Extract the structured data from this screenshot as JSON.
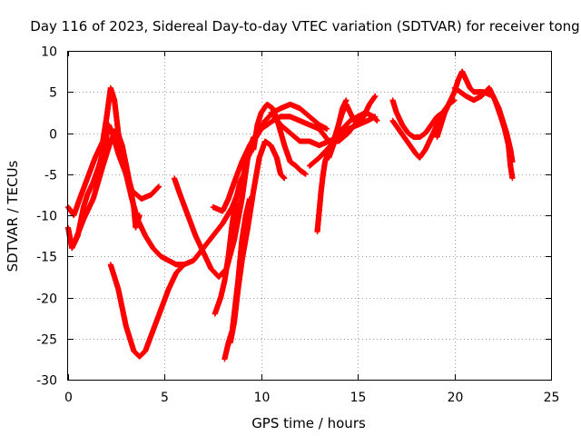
{
  "chart_data": {
    "type": "scatter",
    "title": "Day 116 of 2023, Sidereal Day-to-day VTEC variation (SDTVAR) for receiver tong",
    "xlabel": "GPS time / hours",
    "ylabel": "SDTVAR / TECUs",
    "xlim": [
      0,
      25
    ],
    "ylim": [
      -30,
      10
    ],
    "x_ticks": [
      0,
      5,
      10,
      15,
      20,
      25
    ],
    "y_ticks": [
      -30,
      -25,
      -20,
      -15,
      -10,
      -5,
      0,
      5,
      10
    ],
    "grid": true,
    "legend": "none",
    "marker": "+",
    "color": "#ff0000",
    "series": [
      {
        "points": [
          [
            0.0,
            -11.5
          ],
          [
            0.2,
            -14.0
          ],
          [
            0.5,
            -12.5
          ],
          [
            0.8,
            -9.0
          ],
          [
            1.0,
            -7.5
          ],
          [
            1.3,
            -6.0
          ],
          [
            1.6,
            -4.0
          ],
          [
            1.9,
            -1.5
          ],
          [
            2.1,
            1.0
          ],
          [
            2.3,
            0.0
          ],
          [
            2.6,
            -2.5
          ],
          [
            3.0,
            -5.0
          ],
          [
            3.3,
            -8.0
          ],
          [
            3.6,
            -10.5
          ],
          [
            4.0,
            -12.5
          ],
          [
            4.4,
            -14.0
          ],
          [
            4.8,
            -15.0
          ],
          [
            5.2,
            -15.5
          ],
          [
            5.6,
            -16.0
          ],
          [
            6.0,
            -16.0
          ],
          [
            6.5,
            -15.5
          ],
          [
            7.0,
            -14.0
          ],
          [
            7.5,
            -12.5
          ],
          [
            8.0,
            -11.0
          ],
          [
            8.5,
            -9.0
          ],
          [
            9.0,
            -6.0
          ],
          [
            9.3,
            -3.0
          ],
          [
            9.6,
            -1.0
          ],
          [
            10.0,
            0.5
          ],
          [
            10.3,
            1.0
          ],
          [
            10.6,
            1.5
          ],
          [
            11.0,
            2.0
          ],
          [
            11.5,
            2.0
          ],
          [
            12.0,
            1.5
          ],
          [
            12.5,
            1.0
          ],
          [
            13.0,
            0.5
          ],
          [
            13.5,
            -1.0
          ],
          [
            14.0,
            -0.5
          ],
          [
            14.5,
            0.5
          ],
          [
            15.0,
            1.0
          ],
          [
            15.5,
            1.5
          ],
          [
            15.9,
            2.0
          ]
        ]
      },
      {
        "points": [
          [
            0.0,
            -9.0
          ],
          [
            0.3,
            -10.0
          ],
          [
            0.6,
            -8.0
          ],
          [
            1.0,
            -5.5
          ],
          [
            1.4,
            -3.0
          ],
          [
            1.8,
            -1.0
          ],
          [
            2.0,
            2.0
          ],
          [
            2.2,
            5.5
          ],
          [
            2.4,
            4.0
          ],
          [
            2.6,
            0.0
          ],
          [
            2.9,
            -3.5
          ],
          [
            3.3,
            -7.0
          ],
          [
            3.8,
            -8.0
          ],
          [
            4.3,
            -7.5
          ],
          [
            4.7,
            -6.5
          ]
        ]
      },
      {
        "points": [
          [
            0.3,
            -13.5
          ],
          [
            0.8,
            -10.5
          ],
          [
            1.3,
            -8.0
          ],
          [
            1.8,
            -4.0
          ],
          [
            2.2,
            -1.0
          ],
          [
            2.5,
            0.5
          ],
          [
            2.8,
            -1.5
          ],
          [
            3.1,
            -5.0
          ],
          [
            3.4,
            -9.0
          ],
          [
            3.5,
            -11.5
          ],
          [
            3.7,
            -10.0
          ]
        ]
      },
      {
        "points": [
          [
            2.2,
            -16.0
          ],
          [
            2.6,
            -19.0
          ],
          [
            3.0,
            -23.5
          ],
          [
            3.4,
            -26.5
          ],
          [
            3.7,
            -27.2
          ],
          [
            4.0,
            -26.5
          ],
          [
            4.4,
            -24.0
          ],
          [
            4.8,
            -21.5
          ],
          [
            5.2,
            -19.0
          ],
          [
            5.6,
            -17.0
          ],
          [
            6.0,
            -16.0
          ]
        ]
      },
      {
        "points": [
          [
            5.5,
            -5.5
          ],
          [
            5.8,
            -7.5
          ],
          [
            6.2,
            -10.0
          ],
          [
            6.6,
            -12.5
          ],
          [
            7.0,
            -14.5
          ],
          [
            7.4,
            -16.5
          ],
          [
            7.8,
            -17.5
          ],
          [
            8.2,
            -16.5
          ],
          [
            8.6,
            -13.0
          ],
          [
            9.0,
            -8.0
          ],
          [
            9.3,
            -3.0
          ],
          [
            9.5,
            -2.0
          ]
        ]
      },
      {
        "points": [
          [
            7.5,
            -9.0
          ],
          [
            8.0,
            -9.5
          ],
          [
            8.3,
            -8.0
          ],
          [
            8.6,
            -6.0
          ],
          [
            9.0,
            -3.5
          ],
          [
            9.4,
            -1.5
          ],
          [
            9.8,
            0.0
          ],
          [
            10.2,
            1.5
          ],
          [
            10.6,
            2.5
          ],
          [
            11.0,
            3.0
          ],
          [
            11.5,
            3.5
          ],
          [
            12.0,
            3.0
          ],
          [
            12.5,
            2.0
          ],
          [
            13.0,
            1.0
          ],
          [
            13.4,
            0.5
          ]
        ]
      },
      {
        "points": [
          [
            7.6,
            -22.0
          ],
          [
            7.9,
            -20.0
          ],
          [
            8.1,
            -18.0
          ],
          [
            8.3,
            -15.0
          ],
          [
            8.5,
            -11.0
          ],
          [
            8.7,
            -8.0
          ],
          [
            8.9,
            -6.0
          ],
          [
            9.1,
            -5.0
          ],
          [
            9.4,
            -2.0
          ],
          [
            9.6,
            -0.5
          ]
        ]
      },
      {
        "points": [
          [
            8.1,
            -27.5
          ],
          [
            8.3,
            -25.5
          ],
          [
            8.5,
            -24.0
          ],
          [
            8.6,
            -22.0
          ],
          [
            8.8,
            -18.0
          ],
          [
            9.0,
            -13.0
          ],
          [
            9.2,
            -10.0
          ],
          [
            9.4,
            -8.0
          ]
        ]
      },
      {
        "points": [
          [
            8.4,
            -25.5
          ],
          [
            8.6,
            -23.0
          ],
          [
            8.8,
            -19.0
          ],
          [
            9.0,
            -15.5
          ],
          [
            9.3,
            -11.5
          ],
          [
            9.6,
            -7.0
          ],
          [
            9.9,
            -3.0
          ],
          [
            10.2,
            -1.0
          ],
          [
            10.5,
            -1.5
          ],
          [
            10.8,
            -3.0
          ],
          [
            11.0,
            -5.0
          ],
          [
            11.2,
            -5.5
          ]
        ]
      },
      {
        "points": [
          [
            9.6,
            -2.0
          ],
          [
            9.8,
            1.0
          ],
          [
            10.0,
            2.5
          ],
          [
            10.3,
            3.5
          ],
          [
            10.6,
            3.0
          ],
          [
            10.9,
            1.0
          ],
          [
            11.2,
            -1.5
          ],
          [
            11.5,
            -3.5
          ],
          [
            11.8,
            -4.0
          ],
          [
            12.0,
            -4.5
          ],
          [
            12.3,
            -5.0
          ]
        ]
      },
      {
        "points": [
          [
            10.5,
            2.5
          ],
          [
            11.0,
            1.0
          ],
          [
            11.5,
            0.0
          ],
          [
            12.0,
            -1.0
          ],
          [
            12.5,
            -1.0
          ],
          [
            13.0,
            -1.5
          ],
          [
            13.5,
            -1.0
          ],
          [
            14.0,
            -1.0
          ],
          [
            14.5,
            0.0
          ],
          [
            15.0,
            1.5
          ],
          [
            15.3,
            2.0
          ]
        ]
      },
      {
        "points": [
          [
            12.5,
            -4.0
          ],
          [
            13.0,
            -3.0
          ],
          [
            13.4,
            -2.0
          ],
          [
            13.8,
            -1.0
          ],
          [
            14.2,
            0.5
          ],
          [
            14.6,
            1.5
          ],
          [
            15.0,
            2.0
          ],
          [
            15.4,
            2.5
          ],
          [
            15.8,
            2.0
          ],
          [
            16.0,
            1.5
          ]
        ]
      },
      {
        "points": [
          [
            12.9,
            -12.0
          ],
          [
            13.0,
            -9.5
          ],
          [
            13.1,
            -7.0
          ],
          [
            13.2,
            -5.0
          ],
          [
            13.3,
            -3.5
          ],
          [
            13.5,
            -2.0
          ],
          [
            13.8,
            -0.5
          ],
          [
            14.0,
            1.0
          ],
          [
            14.2,
            3.0
          ],
          [
            14.4,
            4.0
          ]
        ]
      },
      {
        "points": [
          [
            13.5,
            -3.0
          ],
          [
            13.8,
            -1.0
          ],
          [
            14.0,
            1.0
          ],
          [
            14.2,
            2.5
          ],
          [
            14.4,
            3.5
          ],
          [
            14.7,
            2.0
          ],
          [
            15.0,
            1.0
          ],
          [
            15.3,
            2.0
          ],
          [
            15.6,
            3.5
          ],
          [
            15.9,
            4.5
          ]
        ]
      },
      {
        "points": [
          [
            16.8,
            4.0
          ],
          [
            17.0,
            2.5
          ],
          [
            17.3,
            1.0
          ],
          [
            17.6,
            0.0
          ],
          [
            17.9,
            -0.5
          ],
          [
            18.2,
            -0.5
          ],
          [
            18.5,
            0.0
          ],
          [
            18.8,
            1.0
          ],
          [
            19.1,
            2.0
          ],
          [
            19.4,
            2.5
          ],
          [
            19.7,
            3.5
          ],
          [
            20.0,
            4.0
          ]
        ]
      },
      {
        "points": [
          [
            16.8,
            1.5
          ],
          [
            17.1,
            0.5
          ],
          [
            17.4,
            -0.5
          ],
          [
            17.7,
            -1.5
          ],
          [
            18.0,
            -2.5
          ],
          [
            18.2,
            -3.0
          ],
          [
            18.5,
            -2.0
          ],
          [
            18.8,
            -0.5
          ],
          [
            19.1,
            1.0
          ],
          [
            19.4,
            2.0
          ],
          [
            19.6,
            3.0
          ],
          [
            19.8,
            4.0
          ]
        ]
      },
      {
        "points": [
          [
            19.1,
            -0.5
          ],
          [
            19.3,
            1.0
          ],
          [
            19.5,
            2.5
          ],
          [
            19.7,
            3.5
          ],
          [
            19.9,
            4.5
          ],
          [
            20.0,
            5.0
          ],
          [
            20.2,
            6.5
          ],
          [
            20.4,
            7.5
          ],
          [
            20.6,
            6.5
          ],
          [
            20.8,
            5.5
          ],
          [
            21.0,
            5.0
          ],
          [
            21.5,
            5.0
          ],
          [
            22.0,
            4.5
          ],
          [
            22.3,
            3.0
          ],
          [
            22.5,
            1.5
          ],
          [
            22.7,
            0.0
          ],
          [
            22.9,
            -2.0
          ],
          [
            23.0,
            -3.5
          ]
        ]
      },
      {
        "points": [
          [
            20.0,
            5.5
          ],
          [
            20.3,
            5.0
          ],
          [
            20.6,
            4.5
          ],
          [
            21.0,
            4.0
          ],
          [
            21.4,
            4.5
          ],
          [
            21.8,
            5.5
          ],
          [
            22.1,
            4.0
          ],
          [
            22.4,
            2.0
          ],
          [
            22.6,
            0.5
          ],
          [
            22.8,
            -1.5
          ],
          [
            22.9,
            -4.0
          ],
          [
            23.0,
            -5.5
          ]
        ]
      }
    ]
  }
}
